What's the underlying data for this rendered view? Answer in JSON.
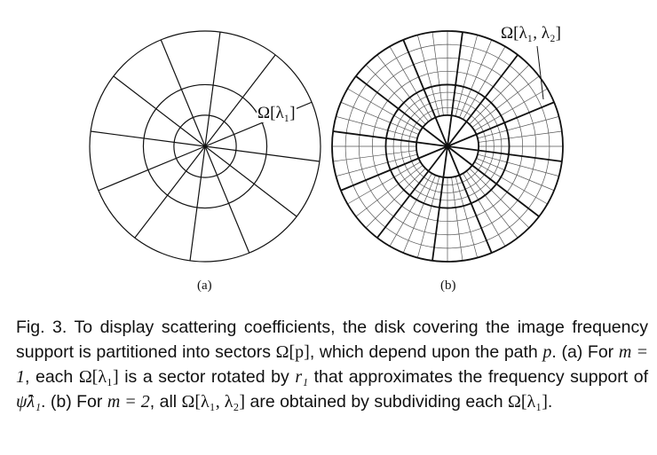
{
  "figure": {
    "panel_a_label": "(a)",
    "panel_b_label": "(b)",
    "sector_label_a": "Ω[λ₁]",
    "sector_label_b": "Ω[λ₁, λ₂]",
    "panel_a": {
      "rings": 3,
      "sectors": 12
    },
    "panel_b": {
      "rings": 3,
      "sectors": 12,
      "sub_rings": 4,
      "sub_sectors": 4
    }
  },
  "caption": {
    "fig_label": "Fig. 3.",
    "t1": " To display scattering coefficients, the disk covering the image frequency support is partitioned into sectors ",
    "m1": "Ω[p]",
    "t2": ", which depend upon the path ",
    "m2": "p",
    "t3": ". (a) For ",
    "m3": "m = 1",
    "t4": ", each ",
    "m4": "Ω[λ₁]",
    "t5": " is a sector rotated by ",
    "m5": "r₁",
    "t6": " that approximates the frequency support of ",
    "m6": "ψ̂λ₁",
    "t7": ". (b) For ",
    "m7": "m = 2",
    "t8": ", all ",
    "m8": "Ω[λ₁, λ₂]",
    "t9": " are obtained by subdividing each ",
    "m9": "Ω[λ₁]",
    "t10": "."
  }
}
